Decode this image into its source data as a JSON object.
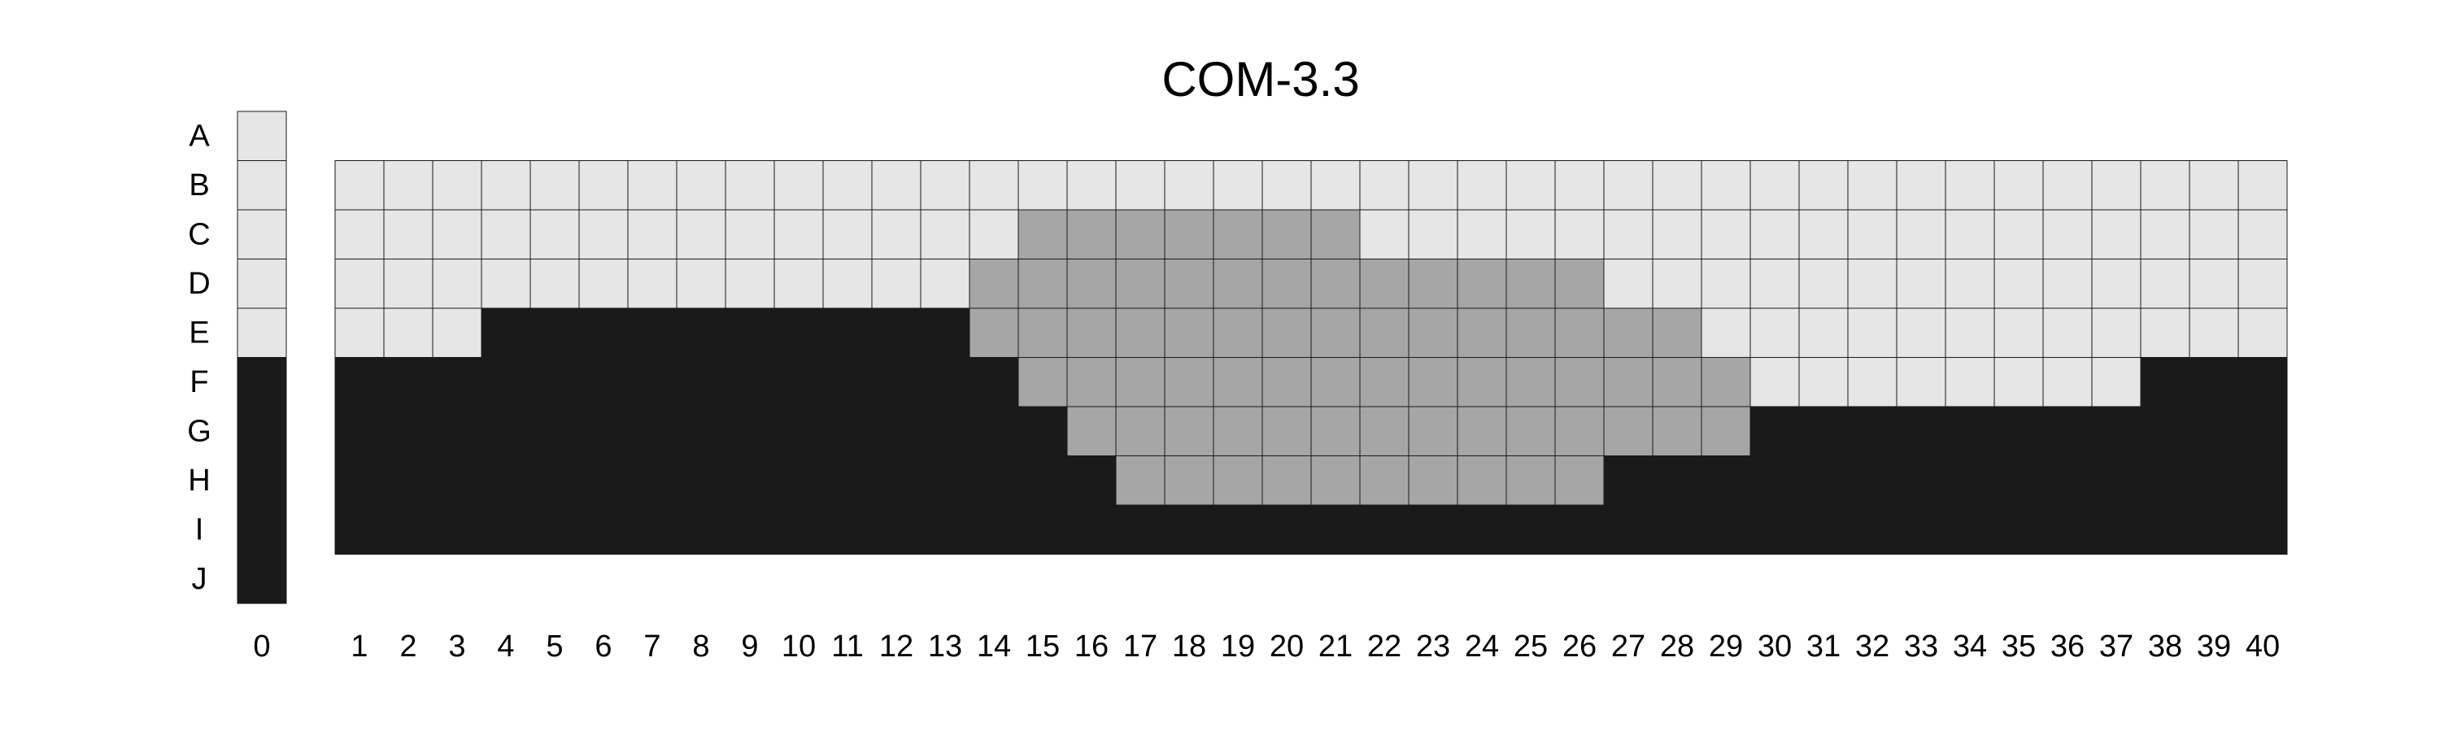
{
  "chart_data": {
    "type": "heatmap",
    "title": "COM-3.3",
    "rows": [
      "A",
      "B",
      "C",
      "D",
      "E",
      "F",
      "G",
      "H",
      "I",
      "J"
    ],
    "reference_column": {
      "label": "0",
      "values": [
        "light",
        "light",
        "light",
        "light",
        "light",
        "dark",
        "dark",
        "dark",
        "dark",
        "dark"
      ]
    },
    "columns": [
      "1",
      "2",
      "3",
      "4",
      "5",
      "6",
      "7",
      "8",
      "9",
      "10",
      "11",
      "12",
      "13",
      "14",
      "15",
      "16",
      "17",
      "18",
      "19",
      "20",
      "21",
      "22",
      "23",
      "24",
      "25",
      "26",
      "27",
      "28",
      "29",
      "30",
      "31",
      "32",
      "33",
      "34",
      "35",
      "36",
      "37",
      "38",
      "39",
      "40"
    ],
    "grid_rows": [
      "B",
      "C",
      "D",
      "E",
      "F",
      "G",
      "H",
      "I"
    ],
    "grid": [
      "LLLLLLLLLLLLLLLLLLLLLLLLLLLLLLLLLLLLLLLL",
      "LLLLLLLLLLLLLLMMMMMMMLLLLLLLLLLLLLLLLLLL",
      "LLLLLLLLLLLLLMMMMMMMMMMMMMLLLLLLLLLLLLLL",
      "LLLKKKKKKKKKKMMMMMMMMMMMMMMMLLLLLLLLLLLL",
      "KKKKKKKKKKKKKKMMMMMMMMMMMMMMMLLLLLLLLKKK",
      "KKKKKKKKKKKKKKKMMMMMMMMMMMMMMKKKKKKKKKKK",
      "KKKKKKKKKKKKKKKKMMMMMMMMMMKKKKKKKKKKKKKK",
      "KKKKKKKKKKKKKKKKKKKKKKKKKKKKKKKKKKKKKKKK"
    ],
    "grid_legend": {
      "L": "light",
      "M": "medium",
      "K": "dark"
    },
    "colors": {
      "light": "#e6e6e6",
      "medium": "#a6a6a6",
      "dark": "#1a1a1a"
    },
    "grid_lines": true,
    "legend": "none"
  }
}
